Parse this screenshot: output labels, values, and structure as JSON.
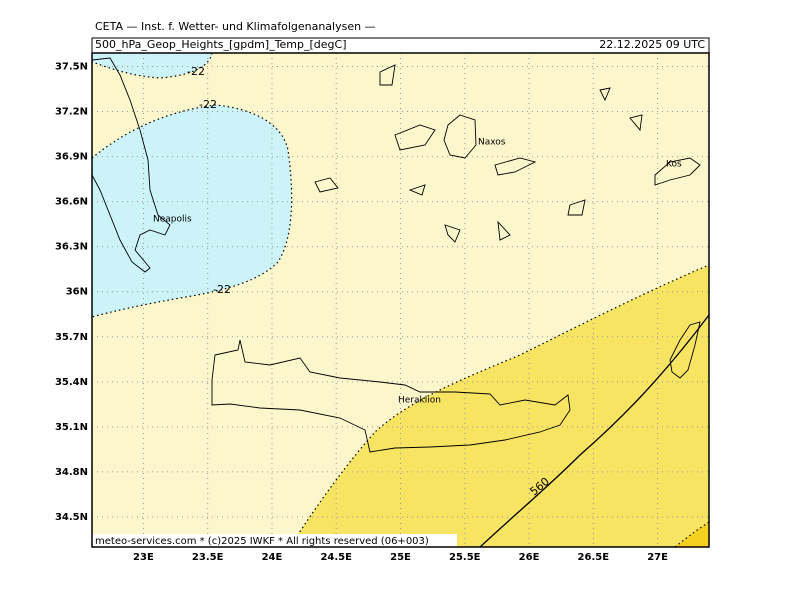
{
  "header": {
    "title": "CETA — Inst. f. Wetter- und Klimafolgenanalysen —",
    "subtitle": "500_hPa_Geop_Heights_[gpdm]_Temp_[degC]",
    "date": "22.12.2025 09 UTC"
  },
  "map": {
    "xlim": [
      22.6,
      27.4
    ],
    "ylim": [
      34.3,
      37.59
    ],
    "xticks": [
      {
        "value": 23,
        "label": "23E"
      },
      {
        "value": 23.5,
        "label": "23.5E"
      },
      {
        "value": 24,
        "label": "24E"
      },
      {
        "value": 24.5,
        "label": "24.5E"
      },
      {
        "value": 25,
        "label": "25E"
      },
      {
        "value": 25.5,
        "label": "25.5E"
      },
      {
        "value": 26,
        "label": "26E"
      },
      {
        "value": 26.5,
        "label": "26.5E"
      },
      {
        "value": 27,
        "label": "27E"
      }
    ],
    "yticks": [
      {
        "value": 37.5,
        "label": "37.5N"
      },
      {
        "value": 37.2,
        "label": "37.2N"
      },
      {
        "value": 36.9,
        "label": "36.9N"
      },
      {
        "value": 36.6,
        "label": "36.6N"
      },
      {
        "value": 36.3,
        "label": "36.3N"
      },
      {
        "value": 36,
        "label": "36N"
      },
      {
        "value": 35.7,
        "label": "35.7N"
      },
      {
        "value": 35.4,
        "label": "35.4N"
      },
      {
        "value": 35.1,
        "label": "35.1N"
      },
      {
        "value": 34.8,
        "label": "34.8N"
      },
      {
        "value": 34.5,
        "label": "34.5N"
      }
    ],
    "contour_labels": [
      "-22",
      "-22",
      "-22",
      "560"
    ],
    "places": [
      "Neapolis",
      "Naxos",
      "Kos",
      "Heraklion"
    ]
  },
  "footer": "meteo-services.com * (c)2025 IWKF * All rights reserved (06+003)"
}
